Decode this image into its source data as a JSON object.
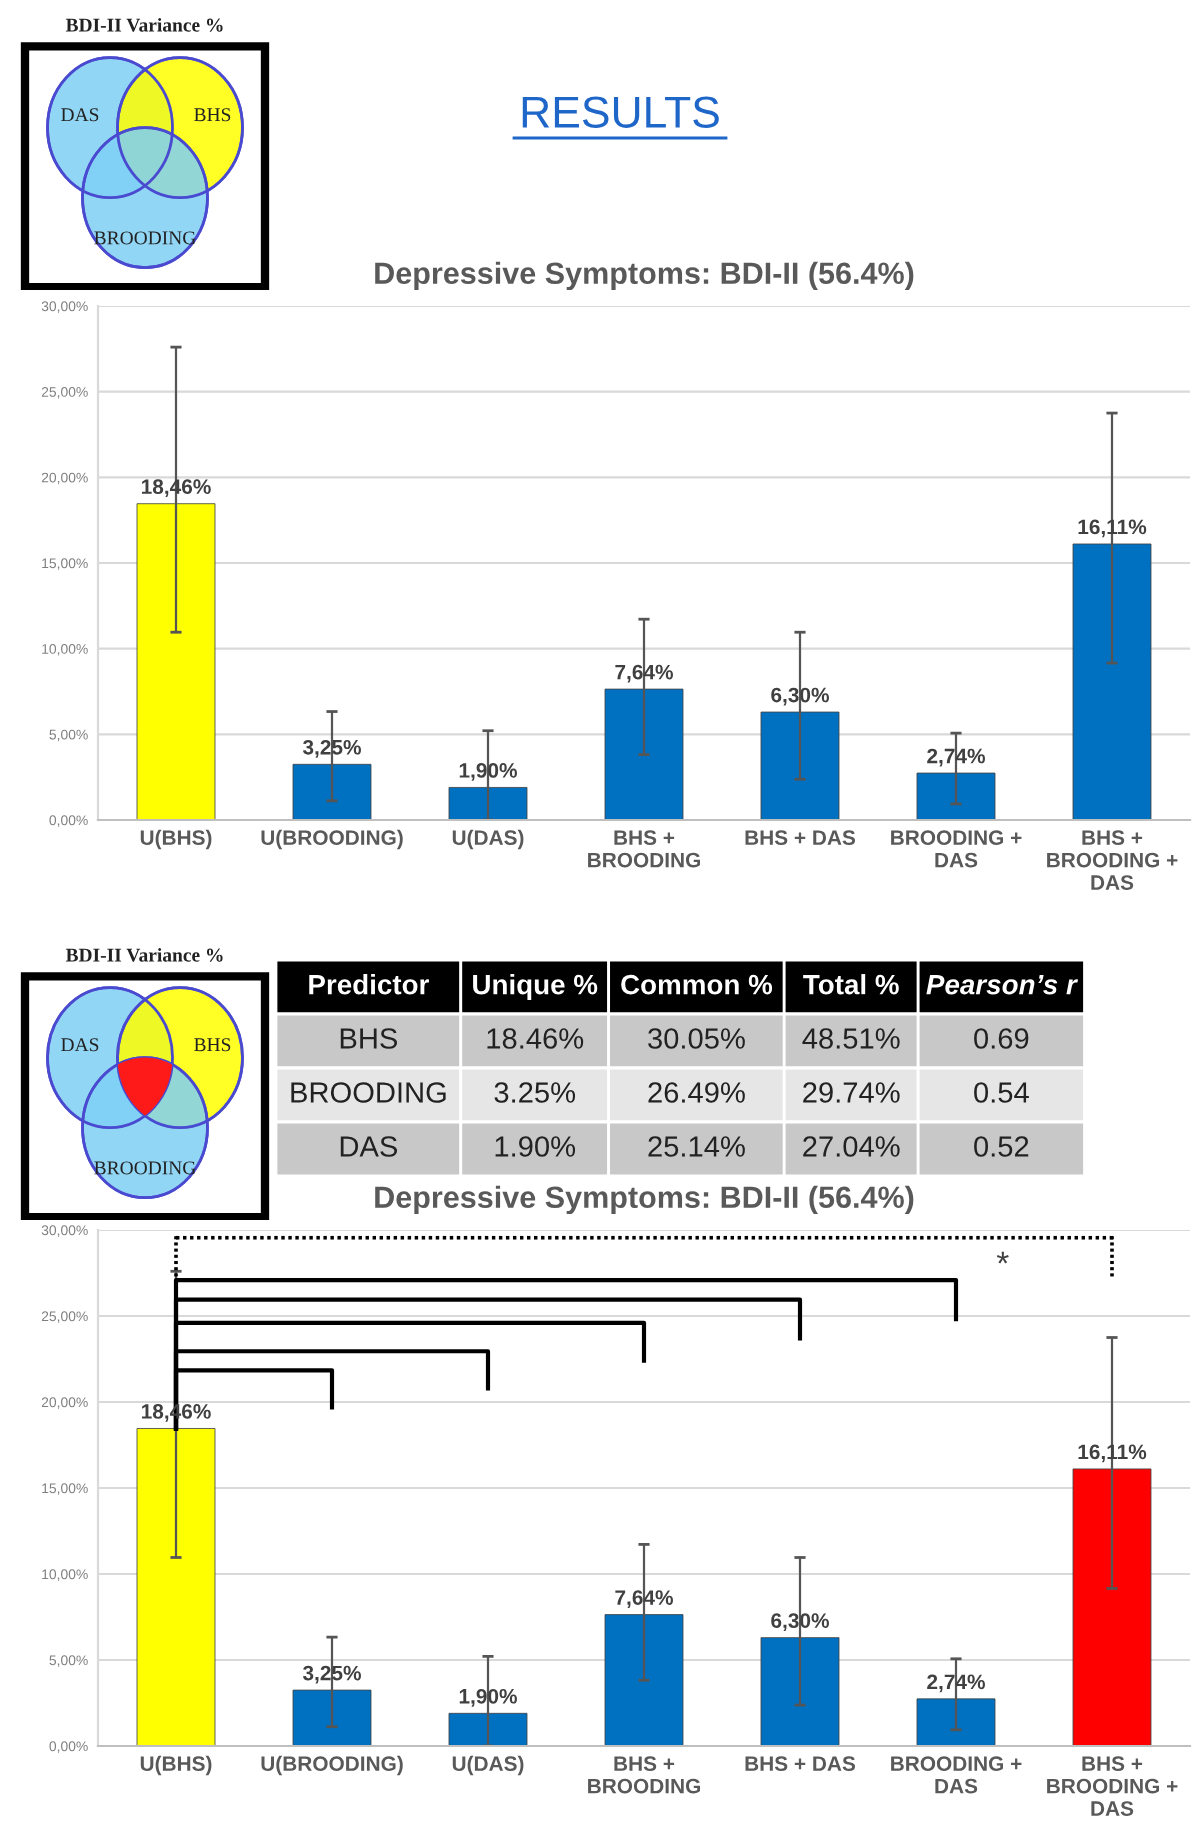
{
  "chart_data": [
    {
      "type": "other",
      "title": "RESULTS",
      "annotations": [
        "BDI-II Variance %",
        "DAS",
        "BHS",
        "BROODING"
      ]
    },
    {
      "type": "bar",
      "title": "Depressive Symptoms: BDI-II (56.4%)",
      "categories": [
        "U(BHS)",
        "U(BROODING)",
        "U(DAS)",
        "BHS +\nBROODING",
        "BHS + DAS",
        "BROODING +\nDAS",
        "BHS +\nBROODING +\nDAS"
      ],
      "values": [
        18.46,
        3.25,
        1.9,
        7.64,
        6.3,
        2.74,
        16.11
      ],
      "colors": [
        "#ffff00",
        "#0070c0",
        "#0070c0",
        "#0070c0",
        "#0070c0",
        "#0070c0",
        "#0070c0"
      ],
      "errors": [
        [
          10.96,
          27.6
        ],
        [
          1.12,
          6.33
        ],
        [
          0,
          5.21
        ],
        [
          3.82,
          11.72
        ],
        [
          2.38,
          10.96
        ],
        [
          0.94,
          5.07
        ],
        [
          9.16,
          23.75
        ]
      ],
      "value_labels": [
        "18,46%",
        "3,25%",
        "1,90%",
        "7,64%",
        "6,30%",
        "2,74%",
        "16,11%"
      ],
      "ylim": [
        0,
        30
      ],
      "yticks": [
        {
          "value": 0,
          "label": "0,00%"
        },
        {
          "value": 5,
          "label": "5,00%"
        },
        {
          "value": 10,
          "label": "10,00%"
        },
        {
          "value": 15,
          "label": "15,00%"
        },
        {
          "value": 20,
          "label": "20,00%"
        },
        {
          "value": 25,
          "label": "25,00%"
        },
        {
          "value": 30,
          "label": "30,00%"
        }
      ],
      "grid": "y"
    },
    {
      "type": "other",
      "annotations": [
        "BDI-II Variance %",
        "DAS",
        "BHS",
        "BROODING"
      ]
    },
    {
      "type": "other",
      "annotations": [
        "Predictor",
        "Unique %",
        "Common %",
        "Total %",
        "Pearson’s r",
        "BHS",
        "18.46%",
        "30.05%",
        "48.51%",
        "0.69",
        "BROODING",
        "3.25%",
        "26.49%",
        "29.74%",
        "0.54",
        "DAS",
        "1.90%",
        "25.14%",
        "27.04%",
        "0.52"
      ]
    },
    {
      "type": "bar",
      "title": "Depressive Symptoms: BDI-II (56.4%)",
      "categories": [
        "U(BHS)",
        "U(BROODING)",
        "U(DAS)",
        "BHS +\nBROODING",
        "BHS + DAS",
        "BROODING +\nDAS",
        "BHS +\nBROODING +\nDAS"
      ],
      "values": [
        18.46,
        3.25,
        1.9,
        7.64,
        6.3,
        2.74,
        16.11
      ],
      "colors": [
        "#ffff00",
        "#0070c0",
        "#0070c0",
        "#0070c0",
        "#0070c0",
        "#0070c0",
        "#ff0000"
      ],
      "errors": [
        [
          10.96,
          27.6
        ],
        [
          1.12,
          6.33
        ],
        [
          0,
          5.21
        ],
        [
          3.82,
          11.72
        ],
        [
          2.38,
          10.96
        ],
        [
          0.94,
          5.07
        ],
        [
          9.16,
          23.75
        ]
      ],
      "value_labels": [
        "18,46%",
        "3,25%",
        "1,90%",
        "7,64%",
        "6,30%",
        "2,74%",
        "16,11%"
      ],
      "ylim": [
        0,
        30
      ],
      "yticks": [
        {
          "value": 0,
          "label": "0,00%"
        },
        {
          "value": 5,
          "label": "5,00%"
        },
        {
          "value": 10,
          "label": "10,00%"
        },
        {
          "value": 15,
          "label": "15,00%"
        },
        {
          "value": 20,
          "label": "20,00%"
        },
        {
          "value": 25,
          "label": "25,00%"
        },
        {
          "value": 30,
          "label": "30,00%"
        }
      ],
      "grid": "y",
      "annotations": [
        "*"
      ]
    }
  ]
}
